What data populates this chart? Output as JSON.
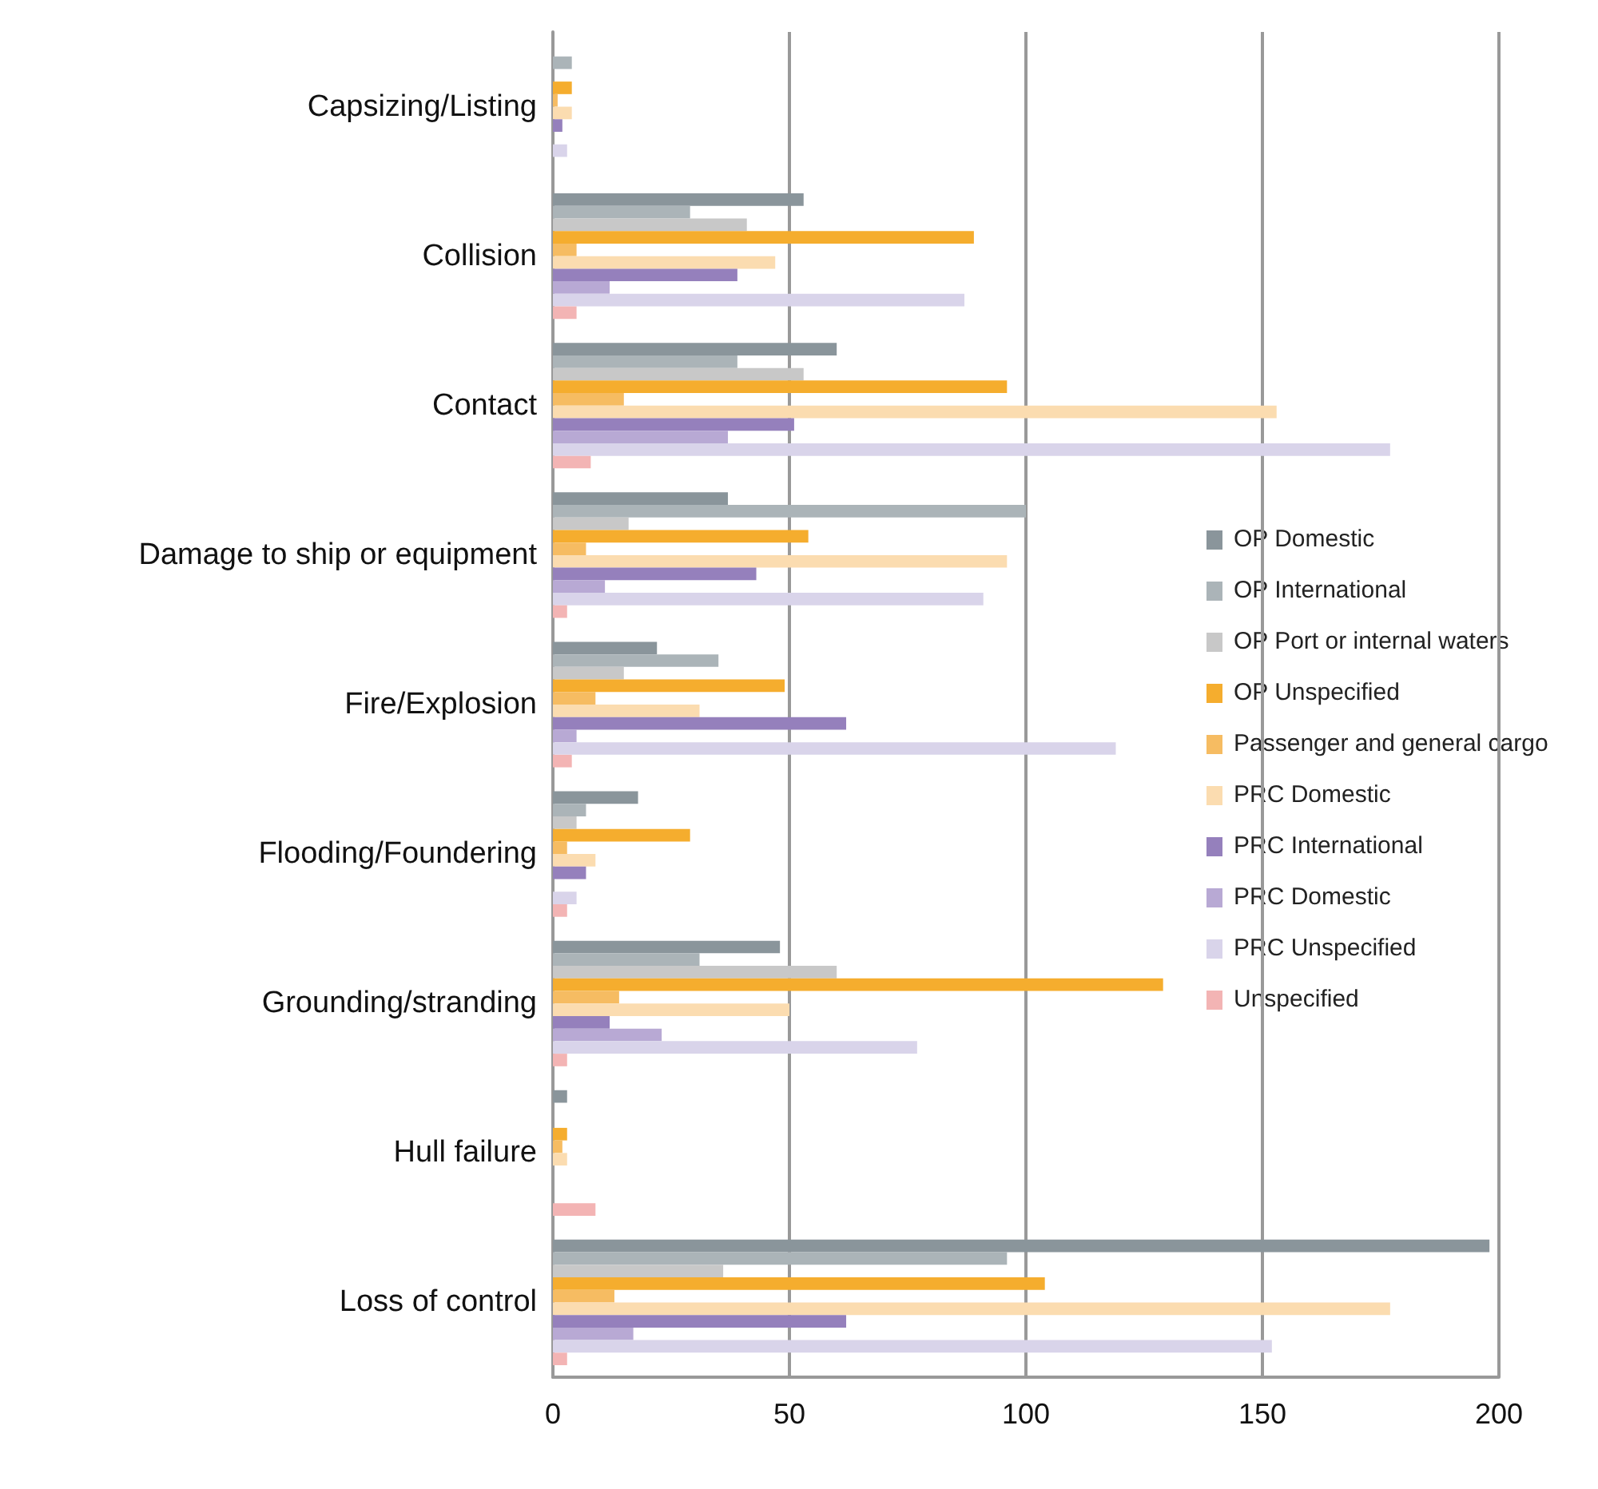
{
  "chart_data": {
    "type": "bar",
    "orientation": "horizontal",
    "categories": [
      "Capsizing/Listing",
      "Collision",
      "Contact",
      "Damage to ship or equipment",
      "Fire/Explosion",
      "Flooding/Foundering",
      "Grounding/stranding",
      "Hull failure",
      "Loss of control"
    ],
    "series": [
      {
        "name": "OP Domestic",
        "color": "#8a959b",
        "values": [
          0,
          53,
          60,
          37,
          22,
          18,
          48,
          3,
          198
        ]
      },
      {
        "name": "OP International",
        "color": "#abb4b8",
        "values": [
          4,
          29,
          39,
          100,
          35,
          7,
          31,
          0,
          96
        ]
      },
      {
        "name": "OP Port or internal waters",
        "color": "#c8c8c8",
        "values": [
          0,
          41,
          53,
          16,
          15,
          5,
          60,
          0,
          36
        ]
      },
      {
        "name": "OP Unspecified",
        "color": "#f5ad2e",
        "values": [
          4,
          89,
          96,
          54,
          49,
          29,
          129,
          3,
          104
        ]
      },
      {
        "name": "Passenger and general cargo",
        "color": "#f6bc62",
        "values": [
          1,
          5,
          15,
          7,
          9,
          3,
          14,
          2,
          13
        ]
      },
      {
        "name": "PRC Domestic",
        "color": "#fbdcb0",
        "values": [
          4,
          47,
          153,
          96,
          31,
          9,
          50,
          3,
          177
        ]
      },
      {
        "name": "PRC International",
        "color": "#9580bc",
        "values": [
          2,
          39,
          51,
          43,
          62,
          7,
          12,
          0,
          62
        ]
      },
      {
        "name": "PRC Domestic",
        "color": "#b8a9d4",
        "values": [
          0,
          12,
          37,
          11,
          5,
          0,
          23,
          0,
          17
        ]
      },
      {
        "name": "PRC Unspecified",
        "color": "#d9d4ea",
        "values": [
          3,
          87,
          177,
          91,
          119,
          5,
          77,
          0,
          152
        ]
      },
      {
        "name": "Unspecified",
        "color": "#f3b4b4",
        "values": [
          0,
          5,
          8,
          3,
          4,
          3,
          3,
          9,
          3
        ]
      }
    ],
    "xlim": [
      0,
      200
    ],
    "xticks": [
      0,
      50,
      100,
      150,
      200
    ],
    "grid": "x",
    "legend": "right"
  }
}
